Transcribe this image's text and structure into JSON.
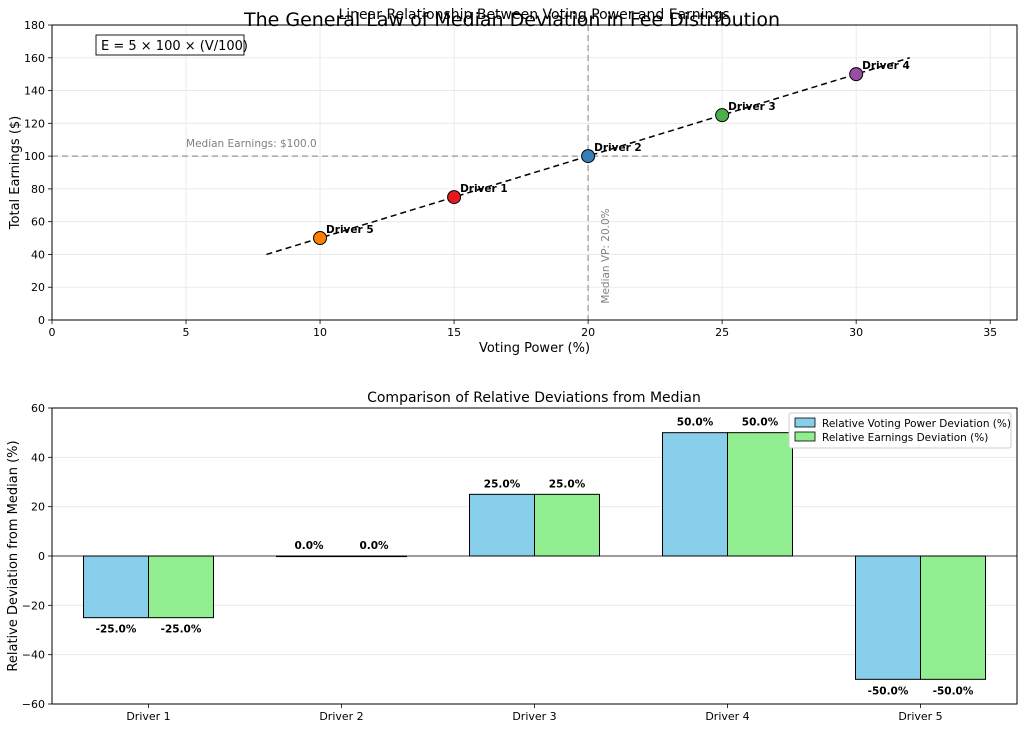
{
  "figure": {
    "suptitle": "The General Law of Median Deviation in Fee Distribution"
  },
  "chart_data": [
    {
      "type": "scatter",
      "title": "Linear Relationship Between Voting Power and Earnings",
      "xlabel": "Voting Power (%)",
      "ylabel": "Total Earnings ($)",
      "xlim": [
        0,
        36
      ],
      "ylim": [
        0,
        180
      ],
      "xticks": [
        "0",
        "5",
        "10",
        "15",
        "20",
        "25",
        "30",
        "35"
      ],
      "yticks": [
        "0",
        "20",
        "40",
        "60",
        "80",
        "100",
        "120",
        "140",
        "160",
        "180"
      ],
      "grid": true,
      "points": [
        {
          "label": "Driver 1",
          "x": 15,
          "y": 75,
          "color": "#e41a1c"
        },
        {
          "label": "Driver 2",
          "x": 20,
          "y": 100,
          "color": "#377eb8"
        },
        {
          "label": "Driver 3",
          "x": 25,
          "y": 125,
          "color": "#4daf4a"
        },
        {
          "label": "Driver 4",
          "x": 30,
          "y": 150,
          "color": "#984ea3"
        },
        {
          "label": "Driver 5",
          "x": 10,
          "y": 50,
          "color": "#ff7f00"
        }
      ],
      "fit_line": {
        "x": [
          8,
          32
        ],
        "y": [
          40,
          160
        ],
        "style": "dashed",
        "color": "#000000"
      },
      "median_earnings": {
        "value": 100,
        "label": "Median Earnings: $100.0",
        "color": "#808080"
      },
      "median_vp": {
        "value": 20,
        "label": "Median VP: 20.0%",
        "color": "#808080"
      },
      "formula": "E = 5 × 100 × (V/100)"
    },
    {
      "type": "bar",
      "title": "Comparison of Relative Deviations from Median",
      "xlabel": "",
      "ylabel": "Relative Deviation from Median (%)",
      "categories": [
        "Driver 1",
        "Driver 2",
        "Driver 3",
        "Driver 4",
        "Driver 5"
      ],
      "ylim": [
        -60,
        60
      ],
      "yticks": [
        "−60",
        "−40",
        "−20",
        "0",
        "20",
        "40",
        "60"
      ],
      "grid": true,
      "legend_position": "top-right",
      "series": [
        {
          "name": "Relative Voting Power Deviation (%)",
          "values": [
            -25,
            0,
            25,
            50,
            -50
          ],
          "labels": [
            "-25.0%",
            "0.0%",
            "25.0%",
            "50.0%",
            "-50.0%"
          ],
          "color": "#87ceeb"
        },
        {
          "name": "Relative Earnings Deviation (%)",
          "values": [
            -25,
            0,
            25,
            50,
            -50
          ],
          "labels": [
            "-25.0%",
            "0.0%",
            "25.0%",
            "50.0%",
            "-50.0%"
          ],
          "color": "#90ee90"
        }
      ]
    }
  ]
}
